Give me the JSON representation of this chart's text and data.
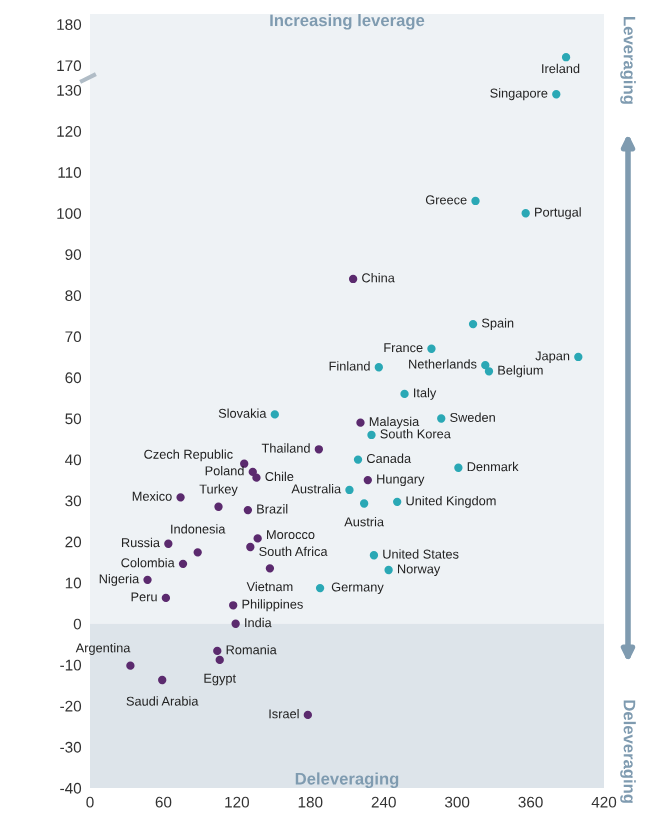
{
  "chart_data": [
    {
      "type": "scatter",
      "tick_labels": "y",
      "xlim": [
        0,
        420
      ],
      "ylim": [
        165,
        182.5
      ],
      "yticks": [
        170,
        180
      ],
      "grid": false,
      "marker": "circle",
      "bands": [
        {
          "axis": "y",
          "from": 165,
          "to": 182.5,
          "label": "Increasing leverage",
          "color": "#eef2f5"
        }
      ],
      "series": [
        {
          "color": "#2aa8b5",
          "x": [
            389
          ],
          "values": [
            172
          ]
        }
      ],
      "annotations": [
        {
          "text": "Ireland",
          "x": 389,
          "y": 172
        }
      ]
    },
    {
      "type": "scatter",
      "xlim": [
        0,
        420
      ],
      "xticks": [
        0,
        60,
        120,
        180,
        240,
        300,
        360,
        420
      ],
      "ylim": [
        -40,
        131
      ],
      "yticks": [
        -40,
        -30,
        -20,
        -10,
        0,
        10,
        20,
        30,
        40,
        50,
        60,
        70,
        80,
        90,
        100,
        110,
        120,
        130
      ],
      "grid": false,
      "marker": "circle",
      "bands": [
        {
          "axis": "y",
          "from": 0,
          "to": 131,
          "color": "#eef2f5"
        },
        {
          "axis": "y",
          "from": -40,
          "to": 0,
          "label": "Deleveraging",
          "color": "#dde4ea"
        }
      ],
      "series": [
        {
          "color": "#2aa8b5",
          "x": [
            381,
            315,
            356,
            313,
            279,
            323,
            326,
            399,
            236,
            257,
            151,
            287,
            230,
            219,
            301,
            212,
            224,
            251,
            232,
            244,
            188
          ],
          "values": [
            129,
            103,
            100,
            73,
            67,
            63,
            61.5,
            65,
            62.5,
            56,
            51,
            50,
            46,
            40,
            38,
            32.6,
            29.3,
            29.7,
            16.7,
            13.1,
            8.7
          ]
        },
        {
          "color": "#5b2a6e",
          "x": [
            215,
            221,
            187,
            126,
            133,
            136,
            227,
            74,
            105,
            129,
            137,
            88,
            64,
            131,
            76,
            147,
            47,
            62,
            117,
            119,
            104,
            106,
            33,
            59,
            178
          ],
          "values": [
            84,
            49,
            42.5,
            39,
            37,
            35.6,
            35,
            30.8,
            28.5,
            27.7,
            20.8,
            17.4,
            19.5,
            18.7,
            14.6,
            13.5,
            10.7,
            6.3,
            4.5,
            0,
            -6.6,
            -8.8,
            -10.2,
            -13.7,
            -22.2
          ]
        }
      ],
      "annotations": [
        {
          "text": "Singapore",
          "x": 381,
          "y": 129
        },
        {
          "text": "Greece",
          "x": 315,
          "y": 103
        },
        {
          "text": "Portugal",
          "x": 356,
          "y": 100
        },
        {
          "text": "Spain",
          "x": 313,
          "y": 73
        },
        {
          "text": "France",
          "x": 279,
          "y": 67
        },
        {
          "text": "Netherlands",
          "x": 323,
          "y": 63
        },
        {
          "text": "Belgium",
          "x": 326,
          "y": 61.5
        },
        {
          "text": "Japan",
          "x": 399,
          "y": 65
        },
        {
          "text": "Finland",
          "x": 236,
          "y": 62.5
        },
        {
          "text": "Italy",
          "x": 257,
          "y": 56
        },
        {
          "text": "Slovakia",
          "x": 151,
          "y": 51
        },
        {
          "text": "Sweden",
          "x": 287,
          "y": 50
        },
        {
          "text": "South Korea",
          "x": 230,
          "y": 46
        },
        {
          "text": "Canada",
          "x": 219,
          "y": 40
        },
        {
          "text": "Denmark",
          "x": 301,
          "y": 38
        },
        {
          "text": "Australia",
          "x": 212,
          "y": 32.6
        },
        {
          "text": "Austria",
          "x": 224,
          "y": 29.3
        },
        {
          "text": "United Kingdom",
          "x": 251,
          "y": 29.7
        },
        {
          "text": "United States",
          "x": 232,
          "y": 16.7
        },
        {
          "text": "Norway",
          "x": 244,
          "y": 13.1
        },
        {
          "text": "Germany",
          "x": 188,
          "y": 8.7
        },
        {
          "text": "China",
          "x": 215,
          "y": 84
        },
        {
          "text": "Malaysia",
          "x": 221,
          "y": 49
        },
        {
          "text": "Thailand",
          "x": 187,
          "y": 42.5
        },
        {
          "text": "Czech Republic",
          "x": 126,
          "y": 39
        },
        {
          "text": "Poland",
          "x": 133,
          "y": 37
        },
        {
          "text": "Chile",
          "x": 136,
          "y": 35.6
        },
        {
          "text": "Hungary",
          "x": 227,
          "y": 35
        },
        {
          "text": "Mexico",
          "x": 74,
          "y": 30.8
        },
        {
          "text": "Turkey",
          "x": 105,
          "y": 28.5
        },
        {
          "text": "Brazil",
          "x": 129,
          "y": 27.7
        },
        {
          "text": "Morocco",
          "x": 137,
          "y": 20.8
        },
        {
          "text": "Indonesia",
          "x": 88,
          "y": 17.4
        },
        {
          "text": "Russia",
          "x": 64,
          "y": 19.5
        },
        {
          "text": "South Africa",
          "x": 131,
          "y": 18.7
        },
        {
          "text": "Colombia",
          "x": 76,
          "y": 14.6
        },
        {
          "text": "Vietnam",
          "x": 147,
          "y": 13.5
        },
        {
          "text": "Nigeria",
          "x": 47,
          "y": 10.7
        },
        {
          "text": "Peru",
          "x": 62,
          "y": 6.3
        },
        {
          "text": "Philippines",
          "x": 117,
          "y": 4.5
        },
        {
          "text": "India",
          "x": 119,
          "y": 0
        },
        {
          "text": "Romania",
          "x": 104,
          "y": -6.6
        },
        {
          "text": "Egypt",
          "x": 106,
          "y": -8.8
        },
        {
          "text": "Argentina",
          "x": 33,
          "y": -10.2
        },
        {
          "text": "Saudi Arabia",
          "x": 59,
          "y": -13.7
        },
        {
          "text": "Israel",
          "x": 178,
          "y": -22.2
        },
        "Leveraging",
        "Deleveraging"
      ]
    }
  ]
}
